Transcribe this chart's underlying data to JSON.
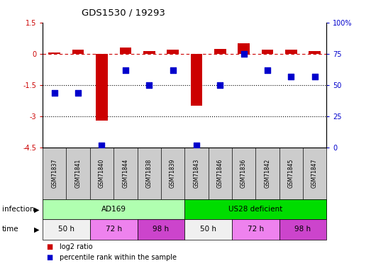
{
  "title": "GDS1530 / 19293",
  "samples": [
    "GSM71837",
    "GSM71841",
    "GSM71840",
    "GSM71844",
    "GSM71838",
    "GSM71839",
    "GSM71843",
    "GSM71846",
    "GSM71836",
    "GSM71842",
    "GSM71845",
    "GSM71847"
  ],
  "log2_ratio": [
    0.05,
    0.2,
    -3.2,
    0.3,
    0.15,
    0.2,
    -2.5,
    0.25,
    0.5,
    0.2,
    0.2,
    0.15
  ],
  "percentile_rank": [
    44,
    44,
    2,
    62,
    50,
    62,
    2,
    50,
    75,
    62,
    57,
    57
  ],
  "bar_color": "#cc0000",
  "dot_color": "#0000cc",
  "left_ylim": [
    -4.5,
    1.5
  ],
  "right_ylim": [
    0,
    100
  ],
  "left_yticks": [
    1.5,
    0,
    -1.5,
    -3,
    -4.5
  ],
  "right_yticks": [
    100,
    75,
    50,
    25,
    0
  ],
  "infection_groups": [
    {
      "label": "AD169",
      "start": 0,
      "end": 6,
      "color": "#b0ffb0"
    },
    {
      "label": "US28 deficient",
      "start": 6,
      "end": 12,
      "color": "#00dd00"
    }
  ],
  "time_groups": [
    {
      "label": "50 h",
      "start": 0,
      "end": 2,
      "color": "#f0f0f0"
    },
    {
      "label": "72 h",
      "start": 2,
      "end": 4,
      "color": "#ee82ee"
    },
    {
      "label": "98 h",
      "start": 4,
      "end": 6,
      "color": "#cc44cc"
    },
    {
      "label": "50 h",
      "start": 6,
      "end": 8,
      "color": "#f0f0f0"
    },
    {
      "label": "72 h",
      "start": 8,
      "end": 10,
      "color": "#ee82ee"
    },
    {
      "label": "98 h",
      "start": 10,
      "end": 12,
      "color": "#cc44cc"
    }
  ],
  "bg_color": "#ffffff",
  "bar_width": 0.5,
  "dot_size": 30
}
